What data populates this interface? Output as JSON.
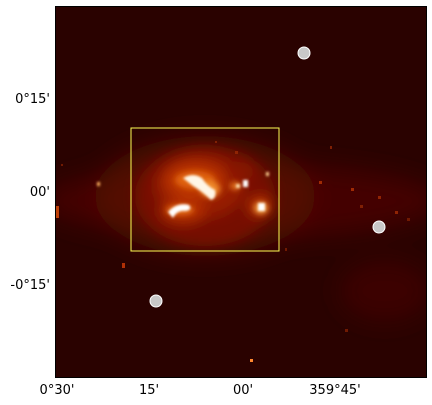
{
  "figure": {
    "y_ticks": [
      "0°15'",
      "00'",
      "-0°15'"
    ],
    "x_ticks": [
      "0°30'",
      "15'",
      "00'",
      "359°45'"
    ],
    "colormap": [
      "#2a0200",
      "#5a0a00",
      "#9a1e00",
      "#d8500c",
      "#f5a44a",
      "#ffffff"
    ],
    "highlight_box_color": "#ffff55",
    "marker_color": "#c8c8c8",
    "markers": [
      "source-marker-1",
      "source-marker-2",
      "source-marker-3"
    ]
  }
}
